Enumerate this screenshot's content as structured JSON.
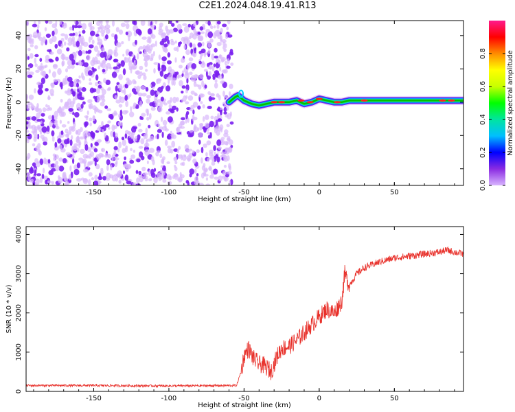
{
  "title": "C2E1.2024.048.19.41.R13",
  "colors": {
    "snr_line": "#e8302a",
    "noise_purple": "#7a1ff0",
    "noise_light": "#d9b8fb",
    "colorbar_stops": [
      "#d8b4fe",
      "#8a2be2",
      "#0000ff",
      "#00bfff",
      "#00e5a0",
      "#00ff00",
      "#c8ff00",
      "#ffff00",
      "#ff8c00",
      "#ff0000",
      "#ff1a8c"
    ]
  },
  "chart_data": [
    {
      "type": "heatmap",
      "xlabel": "Height of straight line (km)",
      "ylabel": "Frequency (Hz)",
      "xlim": [
        -195,
        96
      ],
      "ylim": [
        -50,
        49
      ],
      "xticks": [
        -150,
        -100,
        -50,
        0,
        50
      ],
      "yticks": [
        -40,
        -20,
        0,
        20,
        40
      ],
      "noise_region_x": [
        -195,
        -58
      ],
      "signal_track": {
        "x": [
          -60,
          -56,
          -54,
          -50,
          -45,
          -40,
          -35,
          -30,
          -25,
          -20,
          -15,
          -10,
          -5,
          0,
          5,
          10,
          15,
          20,
          30,
          40,
          50,
          60,
          70,
          80,
          90,
          96
        ],
        "freq": [
          0,
          3,
          4,
          1,
          -1,
          -2,
          -1,
          0,
          0,
          0,
          1,
          -1,
          0,
          2,
          1,
          0,
          0,
          1,
          1,
          1,
          1,
          1,
          1,
          1,
          1,
          1
        ]
      },
      "colorbar": {
        "label": "Normalized spectral amplitude",
        "range": [
          0,
          1
        ],
        "ticks": [
          0.0,
          0.2,
          0.4,
          0.6,
          0.8
        ],
        "tick_labels": [
          "0.0",
          "0.2",
          "0.4",
          "0.6",
          "0.8"
        ]
      }
    },
    {
      "type": "line",
      "xlabel": "Height of straight line (km)",
      "ylabel": "SNR (10 * v/v)",
      "xlim": [
        -195,
        96
      ],
      "ylim": [
        0,
        4200
      ],
      "xticks": [
        -150,
        -100,
        -50,
        0,
        50
      ],
      "yticks": [
        0,
        1000,
        2000,
        3000,
        4000
      ],
      "series": [
        {
          "x": [
            -195,
            -150,
            -100,
            -55,
            -52,
            -50,
            -47,
            -44,
            -40,
            -36,
            -32,
            -28,
            -25,
            -20,
            -15,
            -10,
            -5,
            0,
            5,
            10,
            15,
            17,
            20,
            25,
            30,
            40,
            50,
            60,
            70,
            80,
            85,
            90,
            96
          ],
          "values": [
            150,
            150,
            140,
            150,
            500,
            900,
            1100,
            850,
            700,
            650,
            500,
            900,
            1100,
            1150,
            1300,
            1500,
            1700,
            1900,
            2100,
            2000,
            2300,
            3000,
            2700,
            3000,
            3150,
            3300,
            3400,
            3450,
            3500,
            3550,
            3600,
            3550,
            3500
          ]
        }
      ]
    }
  ]
}
